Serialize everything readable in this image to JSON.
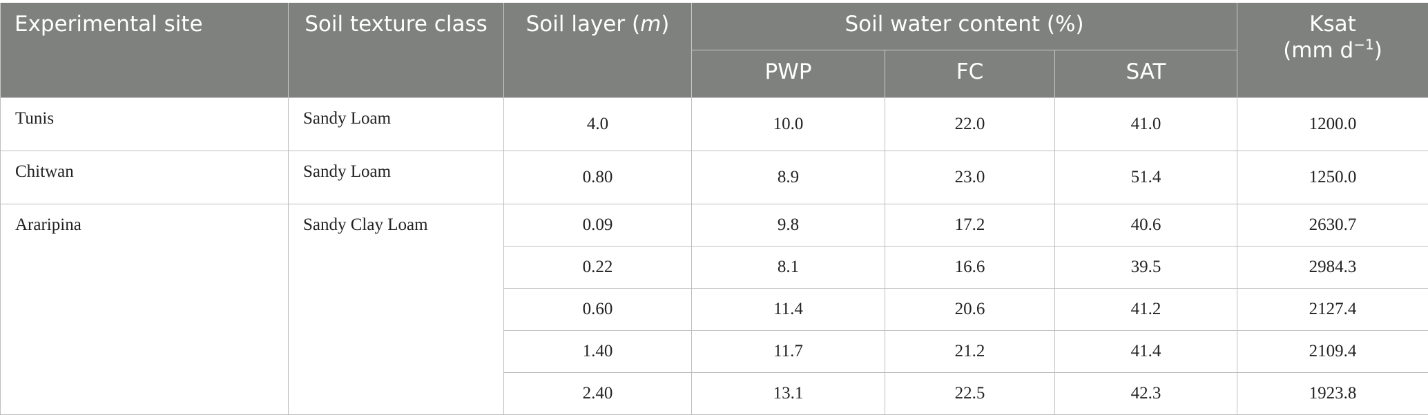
{
  "header": {
    "site": "Experimental site",
    "texture": "Soil texture class",
    "layer": [
      "Soil layer (",
      "m",
      ")"
    ],
    "water": "Soil water content (%)",
    "pwp": "PWP",
    "fc": "FC",
    "sat": "SAT",
    "ksat": [
      "Ksat",
      "(mm d",
      "−1",
      ")"
    ]
  },
  "rows": [
    [
      "Tunis",
      "Sandy Loam",
      "4.0",
      "10.0",
      "22.0",
      "41.0",
      "1200.0"
    ],
    [
      "Chitwan",
      "Sandy Loam",
      "0.80",
      "8.9",
      "23.0",
      "51.4",
      "1250.0"
    ],
    [
      "Araripina",
      "Sandy Clay Loam",
      "0.09",
      "9.8",
      "17.2",
      "40.6",
      "2630.7"
    ],
    [
      "0.22",
      "8.1",
      "16.6",
      "39.5",
      "2984.3"
    ],
    [
      "0.60",
      "11.4",
      "20.6",
      "41.2",
      "2127.4"
    ],
    [
      "1.40",
      "11.7",
      "21.2",
      "41.4",
      "2109.4"
    ],
    [
      "2.40",
      "13.1",
      "22.5",
      "42.3",
      "1923.8"
    ]
  ]
}
